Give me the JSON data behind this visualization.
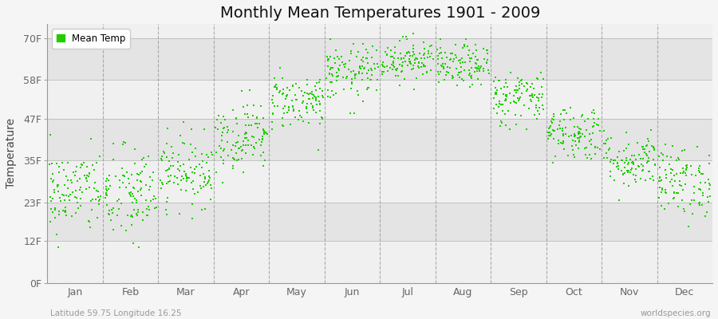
{
  "title": "Monthly Mean Temperatures 1901 - 2009",
  "ylabel": "Temperature",
  "subtitle_left": "Latitude 59.75 Longitude 16.25",
  "subtitle_right": "worldspecies.org",
  "ytick_labels": [
    "0F",
    "12F",
    "23F",
    "35F",
    "47F",
    "58F",
    "70F"
  ],
  "ytick_values": [
    0,
    12,
    23,
    35,
    47,
    58,
    70
  ],
  "months": [
    "Jan",
    "Feb",
    "Mar",
    "Apr",
    "May",
    "Jun",
    "Jul",
    "Aug",
    "Sep",
    "Oct",
    "Nov",
    "Dec"
  ],
  "dot_color": "#22cc00",
  "background_color": "#f5f5f5",
  "plot_bg_light": "#f0f0f0",
  "plot_bg_dark": "#e4e4e4",
  "legend_label": "Mean Temp",
  "num_years": 109,
  "monthly_mean_f": [
    26,
    25,
    32,
    42,
    52,
    60,
    64,
    62,
    53,
    43,
    35,
    29
  ],
  "monthly_std_f": [
    6,
    7,
    5,
    5,
    4,
    4,
    3,
    3,
    4,
    4,
    4,
    5
  ],
  "seed": 42
}
